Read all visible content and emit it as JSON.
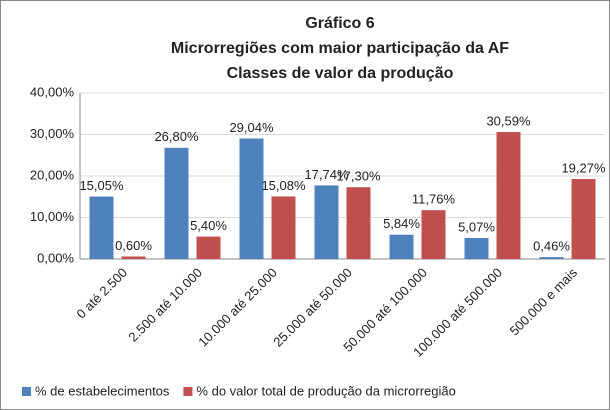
{
  "chart_data": {
    "type": "bar",
    "title": [
      "Gráfico 6",
      "Microrregiões com maior participação da AF",
      "Classes de valor da produção"
    ],
    "categories": [
      "0 até 2.500",
      "2.500 até 10.000",
      "10.000 até 25.000",
      "25.000 até 50.000",
      "50.000 até 100.000",
      "100.000 até 500.000",
      "500.000 e mais"
    ],
    "series": [
      {
        "name": "% de estabelecimentos",
        "color": "#4f81bd",
        "values": [
          15.05,
          26.8,
          29.04,
          17.74,
          5.84,
          5.07,
          0.46
        ],
        "value_labels": [
          "15,05%",
          "26,80%",
          "29,04%",
          "17,74%",
          "5,84%",
          "5,07%",
          "0,46%"
        ]
      },
      {
        "name": "% do valor total de produção da microrregião",
        "color": "#c0504d",
        "values": [
          0.6,
          5.4,
          15.08,
          17.3,
          11.76,
          30.59,
          19.27
        ],
        "value_labels": [
          "0,60%",
          "5,40%",
          "15,08%",
          "17,30%",
          "11,76%",
          "30,59%",
          "19,27%"
        ]
      }
    ],
    "ylim": [
      0,
      40
    ],
    "yticks": [
      {
        "value": 0,
        "label": "0,00%"
      },
      {
        "value": 10,
        "label": "10,00%"
      },
      {
        "value": 20,
        "label": "20,00%"
      },
      {
        "value": 30,
        "label": "30,00%"
      },
      {
        "value": 40,
        "label": "40,00%"
      }
    ],
    "grid": true,
    "legend": "bottom"
  }
}
